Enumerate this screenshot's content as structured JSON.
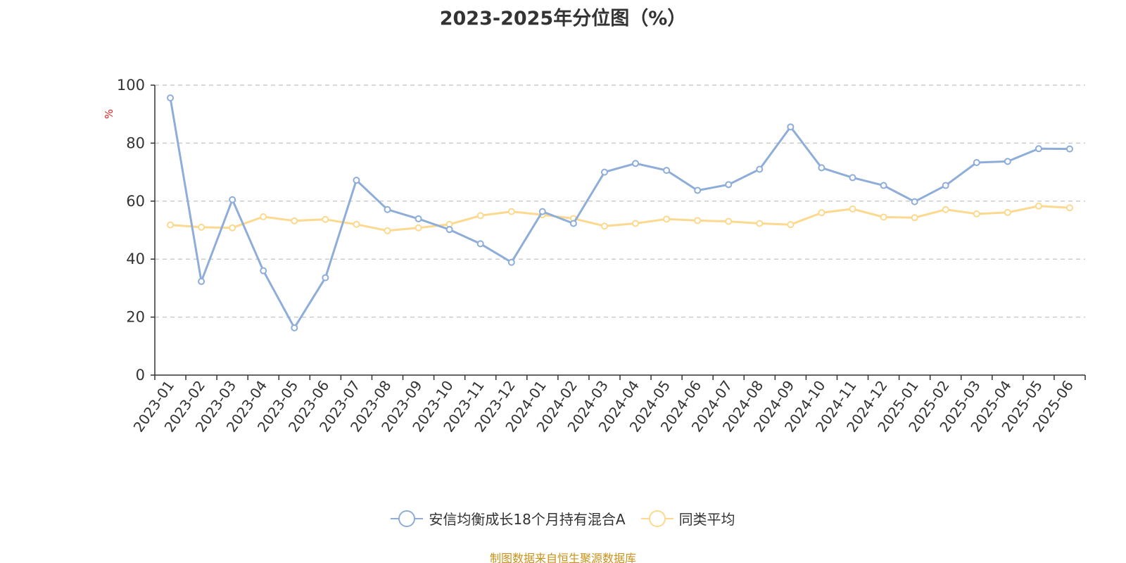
{
  "chart_data": {
    "type": "line",
    "title": "2023-2025年分位图（%）",
    "ylabel": "%",
    "xlabel": "",
    "ylim": [
      0,
      100
    ],
    "yticks": [
      0,
      20,
      40,
      60,
      80,
      100
    ],
    "grid": true,
    "legend_position": "bottom",
    "categories": [
      "2023-01",
      "2023-02",
      "2023-03",
      "2023-04",
      "2023-05",
      "2023-06",
      "2023-07",
      "2023-08",
      "2023-09",
      "2023-10",
      "2023-11",
      "2023-12",
      "2024-01",
      "2024-02",
      "2024-03",
      "2024-04",
      "2024-05",
      "2024-06",
      "2024-07",
      "2024-08",
      "2024-09",
      "2024-10",
      "2024-11",
      "2024-12",
      "2025-01",
      "2025-02",
      "2025-03",
      "2025-04",
      "2025-05",
      "2025-06"
    ],
    "series": [
      {
        "name": "安信均衡成长18个月持有混合A",
        "color": "#8eadd9",
        "values": [
          95.6,
          32.3,
          60.5,
          36.0,
          16.3,
          33.6,
          67.2,
          57.1,
          53.9,
          50.2,
          45.3,
          38.9,
          56.4,
          52.3,
          70.0,
          73.0,
          70.6,
          63.7,
          65.7,
          71.0,
          85.6,
          71.5,
          68.1,
          65.4,
          59.8,
          65.4,
          73.3,
          73.7,
          78.1,
          78.0
        ]
      },
      {
        "name": "同类平均",
        "color": "#fcd98f",
        "values": [
          51.8,
          51.0,
          50.8,
          54.6,
          53.2,
          53.7,
          52.0,
          49.8,
          50.8,
          52.0,
          55.0,
          56.4,
          55.3,
          54.0,
          51.4,
          52.3,
          53.8,
          53.3,
          53.0,
          52.3,
          51.9,
          56.0,
          57.3,
          54.5,
          54.3,
          57.1,
          55.6,
          56.1,
          58.3,
          57.7
        ]
      }
    ]
  },
  "source_note": "制图数据来自恒生聚源数据库"
}
